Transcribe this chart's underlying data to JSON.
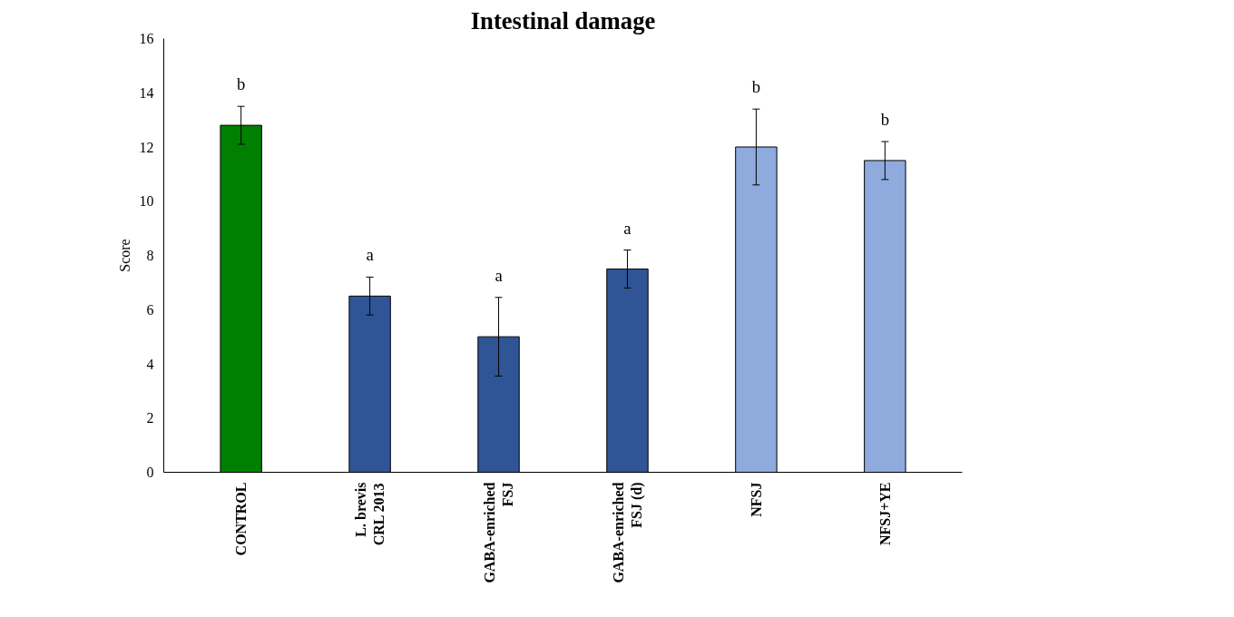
{
  "chart_data": {
    "type": "bar",
    "title": "Intestinal damage",
    "ylabel": "Score",
    "categories": [
      "CONTROL",
      "L. brevis\nCRL 2013",
      "GABA-enriched\nFSJ",
      "GABA-enriched\nFSJ (d)",
      "NFSJ",
      "NFSJ+YE"
    ],
    "values": [
      12.8,
      6.5,
      5.0,
      7.5,
      12.0,
      11.5
    ],
    "colors": [
      "#007f00",
      "#2f5597",
      "#2f5597",
      "#2f5597",
      "#8faadc",
      "#8faadc"
    ],
    "errors": [
      0.7,
      0.7,
      1.45,
      0.7,
      1.4,
      0.7
    ],
    "ylim": [
      0,
      16
    ],
    "yticks": [
      0,
      2,
      4,
      6,
      8,
      10,
      12,
      14,
      16
    ],
    "grid": false,
    "annotations": [
      "b",
      "a",
      "a",
      "a",
      "b",
      "b"
    ]
  }
}
